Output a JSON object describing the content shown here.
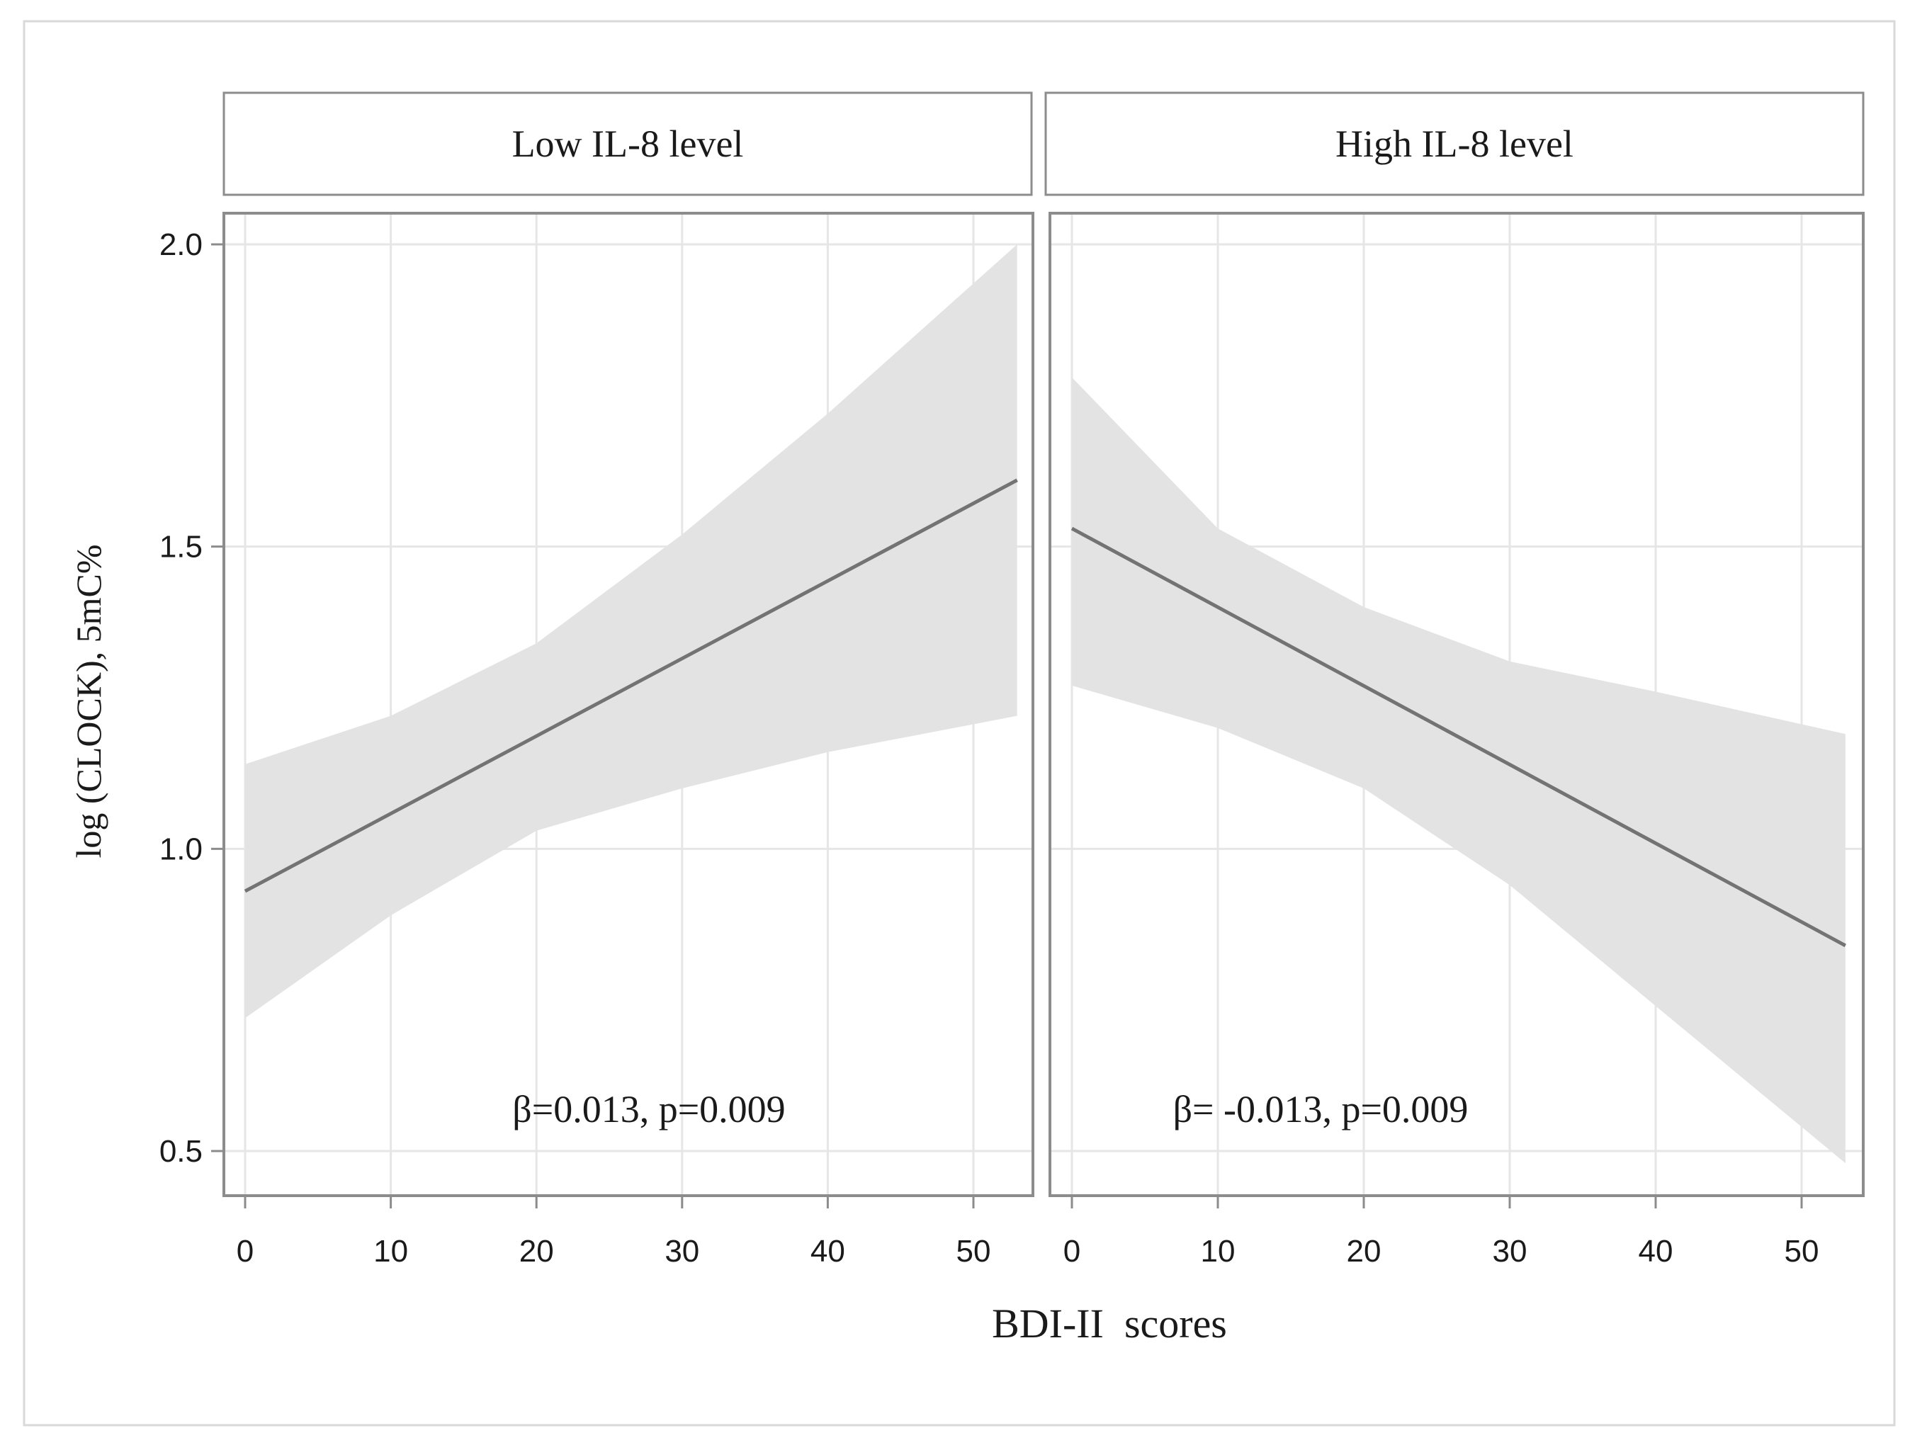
{
  "colors": {
    "background": "#ffffff",
    "outer_border": "#d9d9d9",
    "panel_border": "#8c8c8c",
    "grid": "#e6e6e6",
    "band": "#e3e3e3",
    "line": "#737373",
    "text": "#1a1a1a"
  },
  "chart_data": {
    "type": "line",
    "xlabel": "BDI-II  scores",
    "ylabel": "log (CLOCK), 5mC%",
    "xlim": [
      -1.5,
      55
    ],
    "ylim": [
      0.43,
      2.06
    ],
    "x_ticks": [
      0,
      10,
      20,
      30,
      40,
      50
    ],
    "x_tick_labels": [
      "0",
      "10",
      "20",
      "30",
      "40",
      "50"
    ],
    "y_ticks": [
      0.5,
      1.0,
      1.5,
      2.0
    ],
    "y_tick_labels": [
      "0.5",
      "1.0",
      "1.5",
      "2.0"
    ],
    "grid": true,
    "panels": [
      {
        "title": "Low IL-8 level",
        "annotation": "β=0.013, p=0.009",
        "series": [
          {
            "name": "Fitted line",
            "x": [
              0,
              53
            ],
            "y": [
              0.93,
              1.61
            ]
          }
        ],
        "confidence_band": {
          "x": [
            0,
            10,
            20,
            30,
            40,
            53
          ],
          "lower": [
            0.72,
            0.89,
            1.03,
            1.1,
            1.16,
            1.22
          ],
          "upper": [
            1.14,
            1.22,
            1.34,
            1.52,
            1.72,
            2.0
          ]
        }
      },
      {
        "title": "High IL-8 level",
        "annotation": "β= -0.013, p=0.009",
        "series": [
          {
            "name": "Fitted line",
            "x": [
              0,
              53
            ],
            "y": [
              1.53,
              0.84
            ]
          }
        ],
        "confidence_band": {
          "x": [
            0,
            10,
            20,
            30,
            40,
            53
          ],
          "lower": [
            1.27,
            1.2,
            1.1,
            0.94,
            0.74,
            0.48
          ],
          "upper": [
            1.78,
            1.53,
            1.4,
            1.31,
            1.26,
            1.19
          ]
        }
      }
    ]
  }
}
